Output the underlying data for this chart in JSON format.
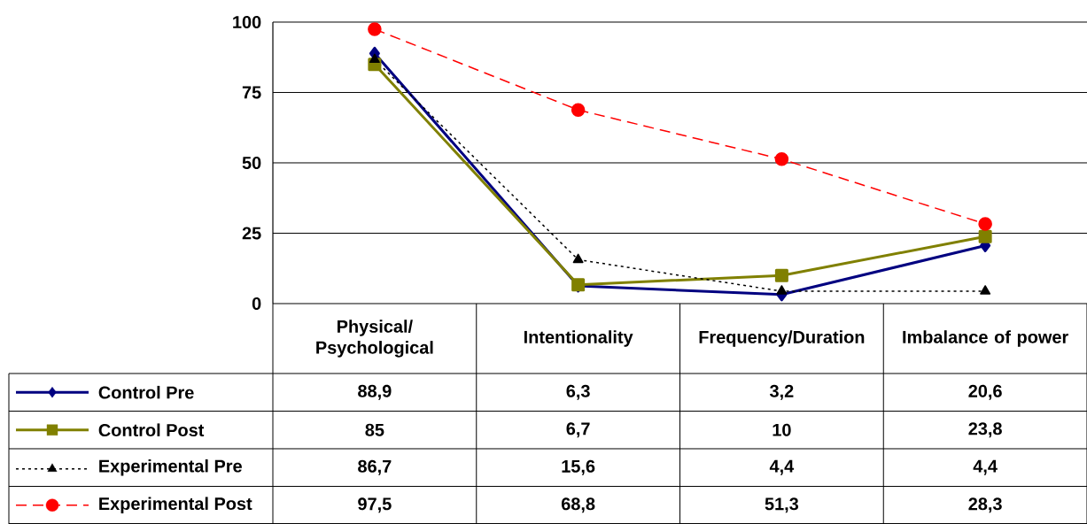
{
  "chart_data": {
    "type": "line",
    "categories": [
      "Physical/ Psychological",
      "Intentionality",
      "Frequency/Duration",
      "Imbalance of power"
    ],
    "series": [
      {
        "name": "Control Pre",
        "color": "#000080",
        "marker": "diamond",
        "line_style": "solid",
        "values": [
          88.9,
          6.3,
          3.2,
          20.6
        ],
        "value_labels": [
          "88,9",
          "6,3",
          "3,2",
          "20,6"
        ]
      },
      {
        "name": "Control Post",
        "color": "#808000",
        "marker": "square",
        "line_style": "solid",
        "values": [
          85,
          6.7,
          10,
          23.8
        ],
        "value_labels": [
          "85",
          "6,7",
          "10",
          "23,8"
        ]
      },
      {
        "name": "Experimental Pre",
        "color": "#000000",
        "marker": "triangle",
        "line_style": "dotted",
        "values": [
          86.7,
          15.6,
          4.4,
          4.4
        ],
        "value_labels": [
          "86,7",
          "15,6",
          "4,4",
          "4,4"
        ]
      },
      {
        "name": "Experimental Post",
        "color": "#ff0000",
        "marker": "circle",
        "line_style": "dashed",
        "values": [
          97.5,
          68.8,
          51.3,
          28.3
        ],
        "value_labels": [
          "97,5",
          "68,8",
          "51,3",
          "28,3"
        ]
      }
    ],
    "ylim": [
      0,
      100
    ],
    "yticks": [
      0,
      25,
      50,
      75,
      100
    ],
    "grid": "y",
    "legend": "left"
  }
}
